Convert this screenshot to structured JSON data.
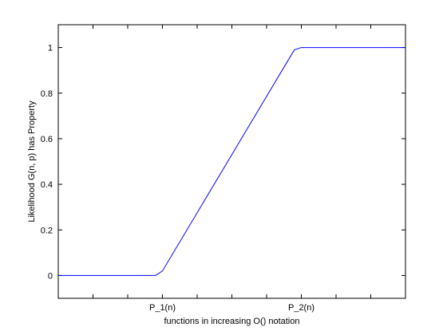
{
  "chart_data": {
    "type": "line",
    "title": "",
    "xlabel": "functions in increasing O() notation",
    "ylabel": "Likelihood G(n, p) has Property",
    "xlim": [
      0,
      10
    ],
    "ylim": [
      -0.1,
      1.1
    ],
    "x_ticks": [
      1,
      2,
      3,
      4,
      5,
      6,
      7,
      8,
      9
    ],
    "x_tick_labels": [
      {
        "x": 3,
        "label": "P_1(n)"
      },
      {
        "x": 7,
        "label": "P_2(n)"
      }
    ],
    "y_ticks": [
      0,
      0.2,
      0.4,
      0.6,
      0.8,
      1
    ],
    "y_tick_labels": [
      "0",
      "0.2",
      "0.4",
      "0.6",
      "0.8",
      "1"
    ],
    "grid": false,
    "series": [
      {
        "color": "#0000ff",
        "x": [
          0,
          2.8,
          3.0,
          6.8,
          7.0,
          10
        ],
        "y": [
          0,
          0,
          0.02,
          0.99,
          1,
          1
        ]
      }
    ]
  },
  "colors": {
    "line": "#0000ff",
    "axes": "#000000",
    "background": "#ffffff"
  }
}
